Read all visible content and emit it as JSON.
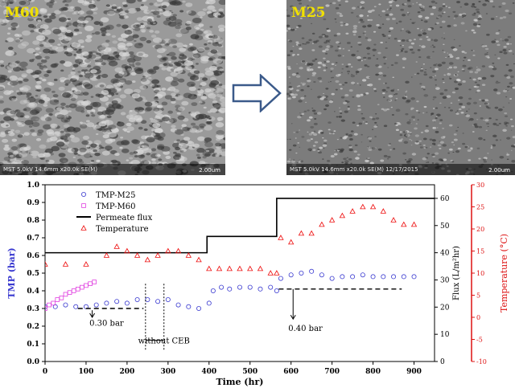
{
  "panels": {
    "left": {
      "label": "M60",
      "footer": "MST 5.0kV 14.6mm x20.0k SE(M)",
      "scale": "2.00um",
      "tone": "#9a9a9a"
    },
    "right": {
      "label": "M25",
      "footer": "MST 5.0kV 14.6mm x20.0k SE(M) 12/17/2015",
      "scale": "2.00um",
      "tone": "#7c7c7c"
    },
    "arrow_color": "#3b5a8a"
  },
  "chart_data": {
    "type": "scatter",
    "xlabel": "Time (hr)",
    "ylabel": "TMP (bar)",
    "y2label": "Flux (L/m²hr)",
    "y3label": "Temperature (°C)",
    "xlim": [
      0,
      950
    ],
    "ylim": [
      0.0,
      1.0
    ],
    "y2lim": [
      0,
      65
    ],
    "y3lim": [
      -10,
      30
    ],
    "xticks": [
      "0",
      "100",
      "200",
      "300",
      "400",
      "500",
      "600",
      "700",
      "800",
      "900"
    ],
    "yticks": [
      "0.0",
      "0.1",
      "0.2",
      "0.3",
      "0.4",
      "0.5",
      "0.6",
      "0.7",
      "0.8",
      "0.9",
      "1.0"
    ],
    "y2ticks": [
      "0",
      "10",
      "20",
      "30",
      "40",
      "50",
      "60"
    ],
    "y3ticks": [
      "-10",
      "-5",
      "0",
      "5",
      "10",
      "15",
      "20",
      "25",
      "30"
    ],
    "legend_position": "top-left",
    "colors": {
      "tmp_m25": "#3a3ad0",
      "tmp_m60": "#e040e0",
      "flux": "#000000",
      "temp": "#ee1010",
      "y2axis": "#3a3ad0",
      "y3axis": "#dd1111"
    },
    "series": [
      {
        "name": "TMP-M25",
        "marker": "circle",
        "axis": "left",
        "x": [
          0,
          25,
          50,
          75,
          100,
          125,
          150,
          175,
          200,
          225,
          250,
          275,
          300,
          325,
          350,
          375,
          400,
          410,
          430,
          450,
          475,
          500,
          525,
          550,
          565,
          575,
          600,
          625,
          650,
          675,
          700,
          725,
          750,
          775,
          800,
          825,
          850,
          875,
          900
        ],
        "y": [
          0.31,
          0.31,
          0.32,
          0.31,
          0.31,
          0.32,
          0.33,
          0.34,
          0.33,
          0.35,
          0.35,
          0.34,
          0.35,
          0.32,
          0.31,
          0.3,
          0.33,
          0.4,
          0.42,
          0.41,
          0.42,
          0.42,
          0.41,
          0.42,
          0.4,
          0.47,
          0.49,
          0.5,
          0.51,
          0.49,
          0.47,
          0.48,
          0.48,
          0.49,
          0.48,
          0.48,
          0.48,
          0.48,
          0.48
        ]
      },
      {
        "name": "TMP-M60",
        "marker": "square",
        "axis": "left",
        "x": [
          0,
          10,
          20,
          30,
          40,
          50,
          60,
          70,
          80,
          90,
          100,
          110,
          120
        ],
        "y": [
          0.3,
          0.32,
          0.33,
          0.35,
          0.36,
          0.38,
          0.39,
          0.4,
          0.41,
          0.42,
          0.43,
          0.44,
          0.45
        ]
      },
      {
        "name": "Permeate flux",
        "marker": "line",
        "axis": "flux",
        "x": [
          0,
          395,
          395,
          565,
          565,
          950
        ],
        "y": [
          40,
          40,
          46,
          46,
          60,
          60
        ]
      },
      {
        "name": "Temperature",
        "marker": "triangle",
        "axis": "temp",
        "x": [
          0,
          50,
          100,
          150,
          175,
          200,
          225,
          250,
          275,
          300,
          325,
          350,
          375,
          400,
          425,
          450,
          475,
          500,
          525,
          550,
          565,
          575,
          600,
          625,
          650,
          675,
          700,
          725,
          750,
          775,
          800,
          825,
          850,
          875,
          900
        ],
        "y": [
          12,
          12,
          12,
          14,
          16,
          15,
          14,
          13,
          14,
          15,
          15,
          14,
          13,
          11,
          11,
          11,
          11,
          11,
          11,
          10,
          10,
          18,
          17,
          19,
          19,
          21,
          22,
          23,
          24,
          25,
          25,
          24,
          22,
          21,
          21
        ]
      }
    ],
    "annotations": [
      {
        "text": "0.30 bar",
        "x": 150,
        "y": 0.22,
        "arrow_from": 0.29,
        "arrow_to": 0.25
      },
      {
        "text": "0.40 bar",
        "x": 635,
        "y": 0.19,
        "arrow_from": 0.41,
        "arrow_to": 0.24
      },
      {
        "text": "without CEB",
        "x": 290,
        "y": 0.12
      }
    ],
    "reference_lines": [
      {
        "x0": 80,
        "x1": 240,
        "y": 0.3
      },
      {
        "x0": 570,
        "x1": 870,
        "y": 0.41
      }
    ],
    "ceb_window": [
      245,
      290
    ]
  }
}
